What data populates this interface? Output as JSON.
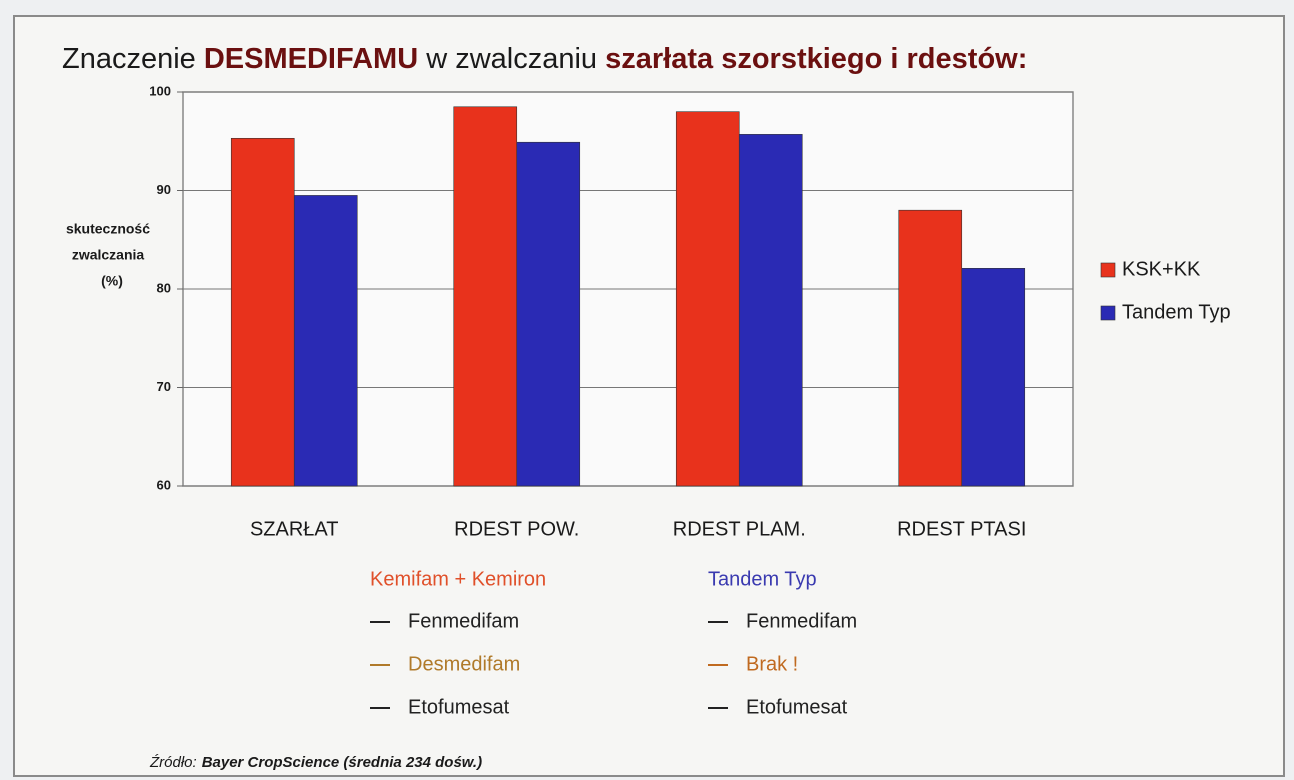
{
  "chart_data": {
    "type": "bar",
    "title_parts": [
      "Znaczenie ",
      "DESMEDIFAMU",
      " w zwalczaniu ",
      "szarłata szorstkiego i rdestów:"
    ],
    "ylabel_lines": [
      "skuteczność",
      "zwalczania",
      "(%)"
    ],
    "categories": [
      "SZARŁAT",
      "RDEST POW.",
      "RDEST PLAM.",
      "RDEST PTASI"
    ],
    "series": [
      {
        "name": "KSK+KK",
        "color": "#e8321c",
        "values": [
          95.3,
          98.5,
          98.0,
          88.0
        ]
      },
      {
        "name": "Tandem Typ",
        "color": "#2a2ab4",
        "values": [
          89.5,
          94.9,
          95.7,
          82.1
        ]
      }
    ],
    "ylim": [
      60,
      100
    ],
    "yticks": [
      60,
      70,
      80,
      90,
      100
    ],
    "grid": true,
    "legend": "right"
  },
  "formulations": [
    {
      "title": "Kemifam + Kemiron",
      "color": "#e0502a",
      "items": [
        {
          "text": "Fenmedifam",
          "color": "#222222"
        },
        {
          "text": "Desmedifam",
          "color": "#b07a2a"
        },
        {
          "text": "Etofumesat",
          "color": "#222222"
        }
      ]
    },
    {
      "title": "Tandem Typ",
      "color": "#3a3ab0",
      "items": [
        {
          "text": "Fenmedifam",
          "color": "#222222"
        },
        {
          "text": "Brak !",
          "color": "#c06a20"
        },
        {
          "text": "Etofumesat",
          "color": "#222222"
        }
      ]
    }
  ],
  "source_parts": [
    "Źródło:",
    "Bayer CropScience (średnia 234 dośw.)"
  ]
}
